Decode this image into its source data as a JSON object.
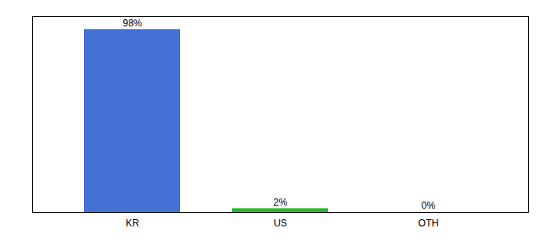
{
  "chart_data": {
    "type": "bar",
    "categories": [
      "KR",
      "US",
      "OTH"
    ],
    "values": [
      98,
      2,
      0
    ],
    "value_labels": [
      "98%",
      "2%",
      "0%"
    ],
    "data_labels": true,
    "colors": [
      "#4472d4",
      "#2db82d",
      "#4472d4"
    ],
    "ylim": [
      0,
      105
    ],
    "tick_labels": "x",
    "grid": false
  }
}
